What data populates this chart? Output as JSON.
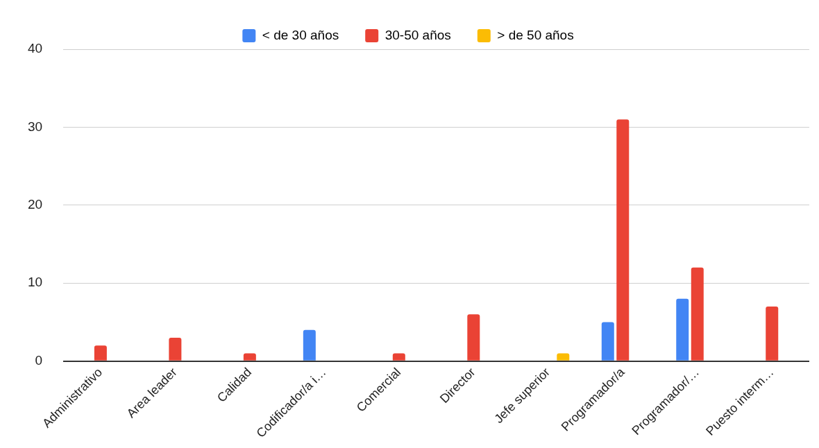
{
  "chart_data": {
    "type": "bar",
    "categories": [
      "Administrativo",
      "Area leader",
      "Calidad",
      "Codificador/a i…",
      "Comercial",
      "Director",
      "Jefe superior",
      "Programador/a",
      "Programador/…",
      "Puesto interm…"
    ],
    "series": [
      {
        "name": "< de 30 años",
        "color": "#4285f4",
        "values": [
          null,
          null,
          null,
          4,
          null,
          null,
          null,
          5,
          8,
          null
        ]
      },
      {
        "name": "30-50 años",
        "color": "#ea4335",
        "values": [
          2,
          3,
          1,
          null,
          1,
          6,
          null,
          31,
          12,
          7
        ]
      },
      {
        "name": "> de 50 años",
        "color": "#fbbc04",
        "values": [
          null,
          null,
          null,
          null,
          null,
          null,
          1,
          null,
          null,
          null
        ]
      }
    ],
    "ylim": [
      0,
      40
    ],
    "yticks": [
      0,
      10,
      20,
      30,
      40
    ],
    "grid": "y",
    "legend": "top"
  }
}
